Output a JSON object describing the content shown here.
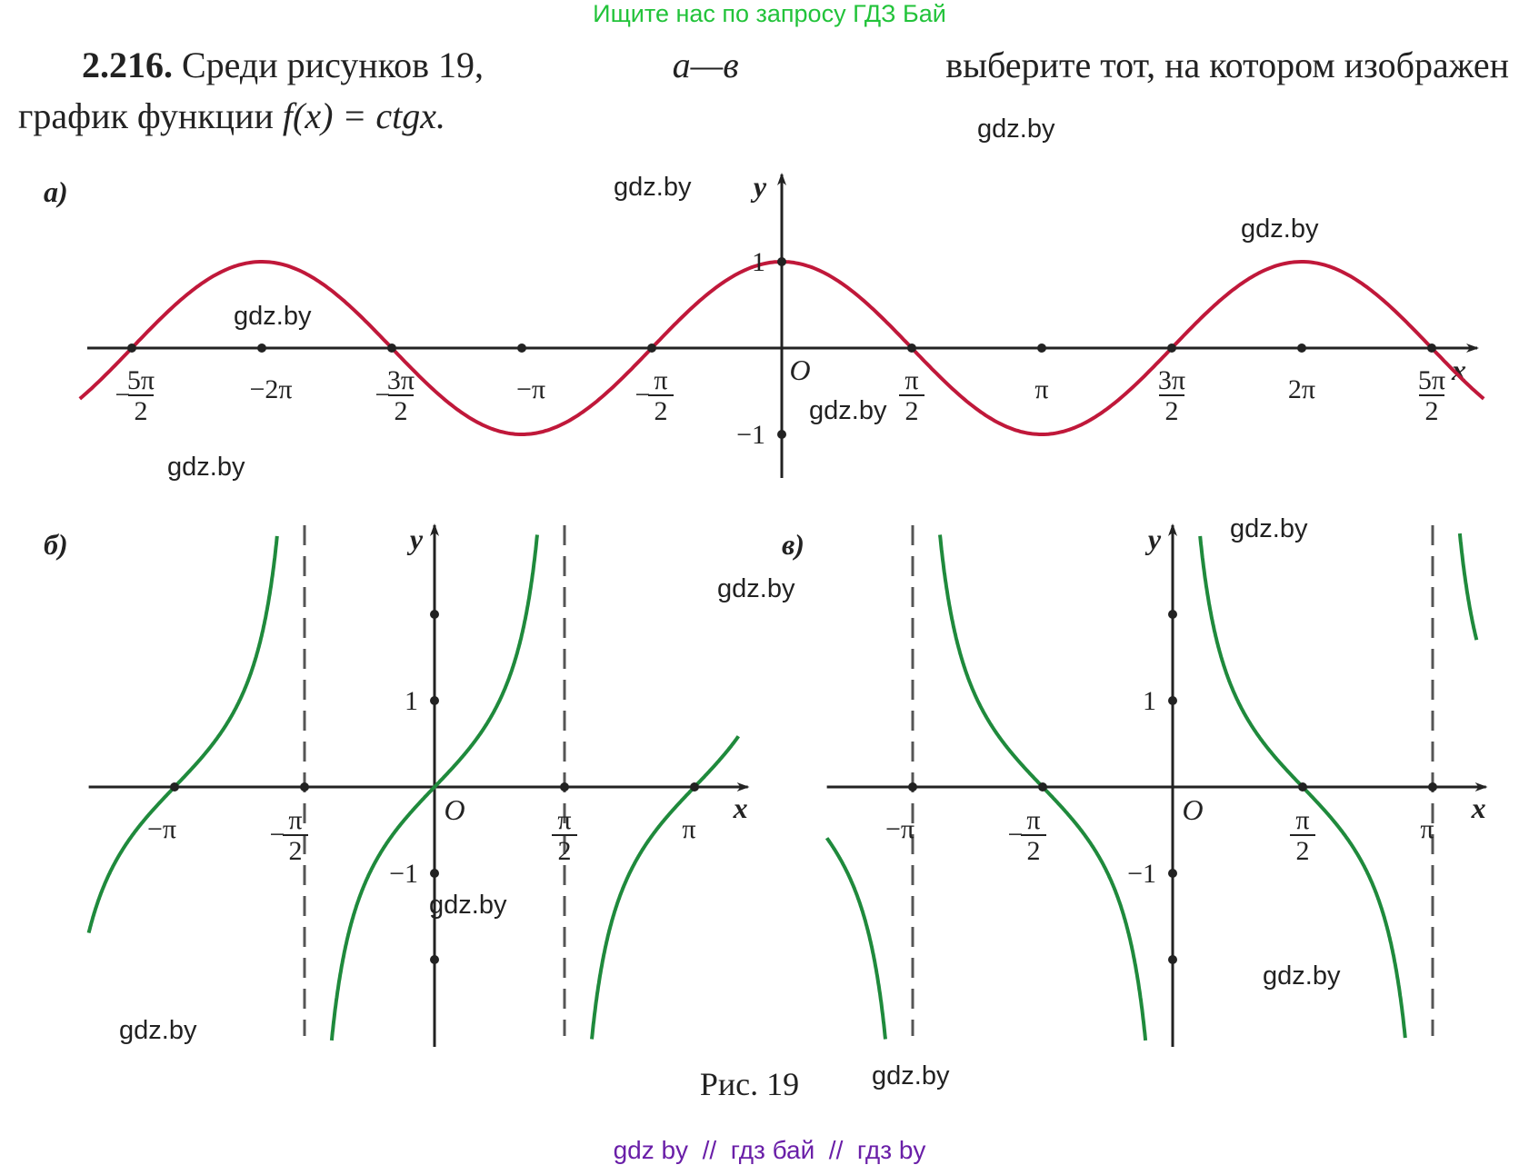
{
  "banner": "Ищите нас по запросу ГДЗ Бай",
  "problem": {
    "number": "2.216.",
    "line1_a": "Среди рисунков 19,",
    "line1_b": "а—в",
    "line1_c": "выберите тот, на котором изображен",
    "line2_a": "график функции",
    "line2_b": "f(x) = ctgx."
  },
  "watermark": "gdz.by",
  "caption": "Рис. 19",
  "footer": "gdz by  //  гдз бай  //  гдз by",
  "colors": {
    "curve_a": "#c0183a",
    "curve_bc": "#1f8a3c",
    "axis": "#222222",
    "asymptote": "#555555",
    "banner": "#22c33a",
    "footer": "#6a1fa8"
  },
  "chart_data": [
    {
      "panel": "а)",
      "type": "line",
      "function": "cos x",
      "xlabel": "x",
      "ylabel": "y",
      "origin_label": "O",
      "xlim": [
        -2.7,
        2.7
      ],
      "x_units": "π",
      "x_ticks": [
        {
          "value": -2.5,
          "label": "−5π/2"
        },
        {
          "value": -2,
          "label": "−2π"
        },
        {
          "value": -1.5,
          "label": "−3π/2"
        },
        {
          "value": -1,
          "label": "−π"
        },
        {
          "value": -0.5,
          "label": "−π/2"
        },
        {
          "value": 0.5,
          "label": "π/2"
        },
        {
          "value": 1,
          "label": "π"
        },
        {
          "value": 1.5,
          "label": "3π/2"
        },
        {
          "value": 2,
          "label": "2π"
        },
        {
          "value": 2.5,
          "label": "5π/2"
        }
      ],
      "y_ticks": [
        {
          "value": 1,
          "label": "1"
        },
        {
          "value": -1,
          "label": "−1"
        }
      ]
    },
    {
      "panel": "б)",
      "type": "line",
      "function": "tg x",
      "xlabel": "x",
      "ylabel": "y",
      "origin_label": "O",
      "xlim": [
        -1.33,
        1.17
      ],
      "x_units": "π",
      "x_ticks": [
        {
          "value": -1,
          "label": "−π"
        },
        {
          "value": -0.5,
          "label": "−π/2"
        },
        {
          "value": 0.5,
          "label": "π/2"
        },
        {
          "value": 1,
          "label": "π"
        }
      ],
      "y_ticks": [
        {
          "value": 1,
          "label": "1"
        },
        {
          "value": -1,
          "label": "−1"
        }
      ],
      "asymptotes": [
        -0.5,
        0.5
      ]
    },
    {
      "panel": "в)",
      "type": "line",
      "function": "ctg x",
      "xlabel": "x",
      "ylabel": "y",
      "origin_label": "O",
      "xlim": [
        -1.33,
        1.17
      ],
      "x_units": "π",
      "x_ticks": [
        {
          "value": -1,
          "label": "−π"
        },
        {
          "value": -0.5,
          "label": "−π/2"
        },
        {
          "value": 0.5,
          "label": "π/2"
        },
        {
          "value": 1,
          "label": "π"
        }
      ],
      "y_ticks": [
        {
          "value": 1,
          "label": "1"
        },
        {
          "value": -1,
          "label": "−1"
        }
      ],
      "asymptotes": [
        -1,
        1
      ]
    }
  ]
}
